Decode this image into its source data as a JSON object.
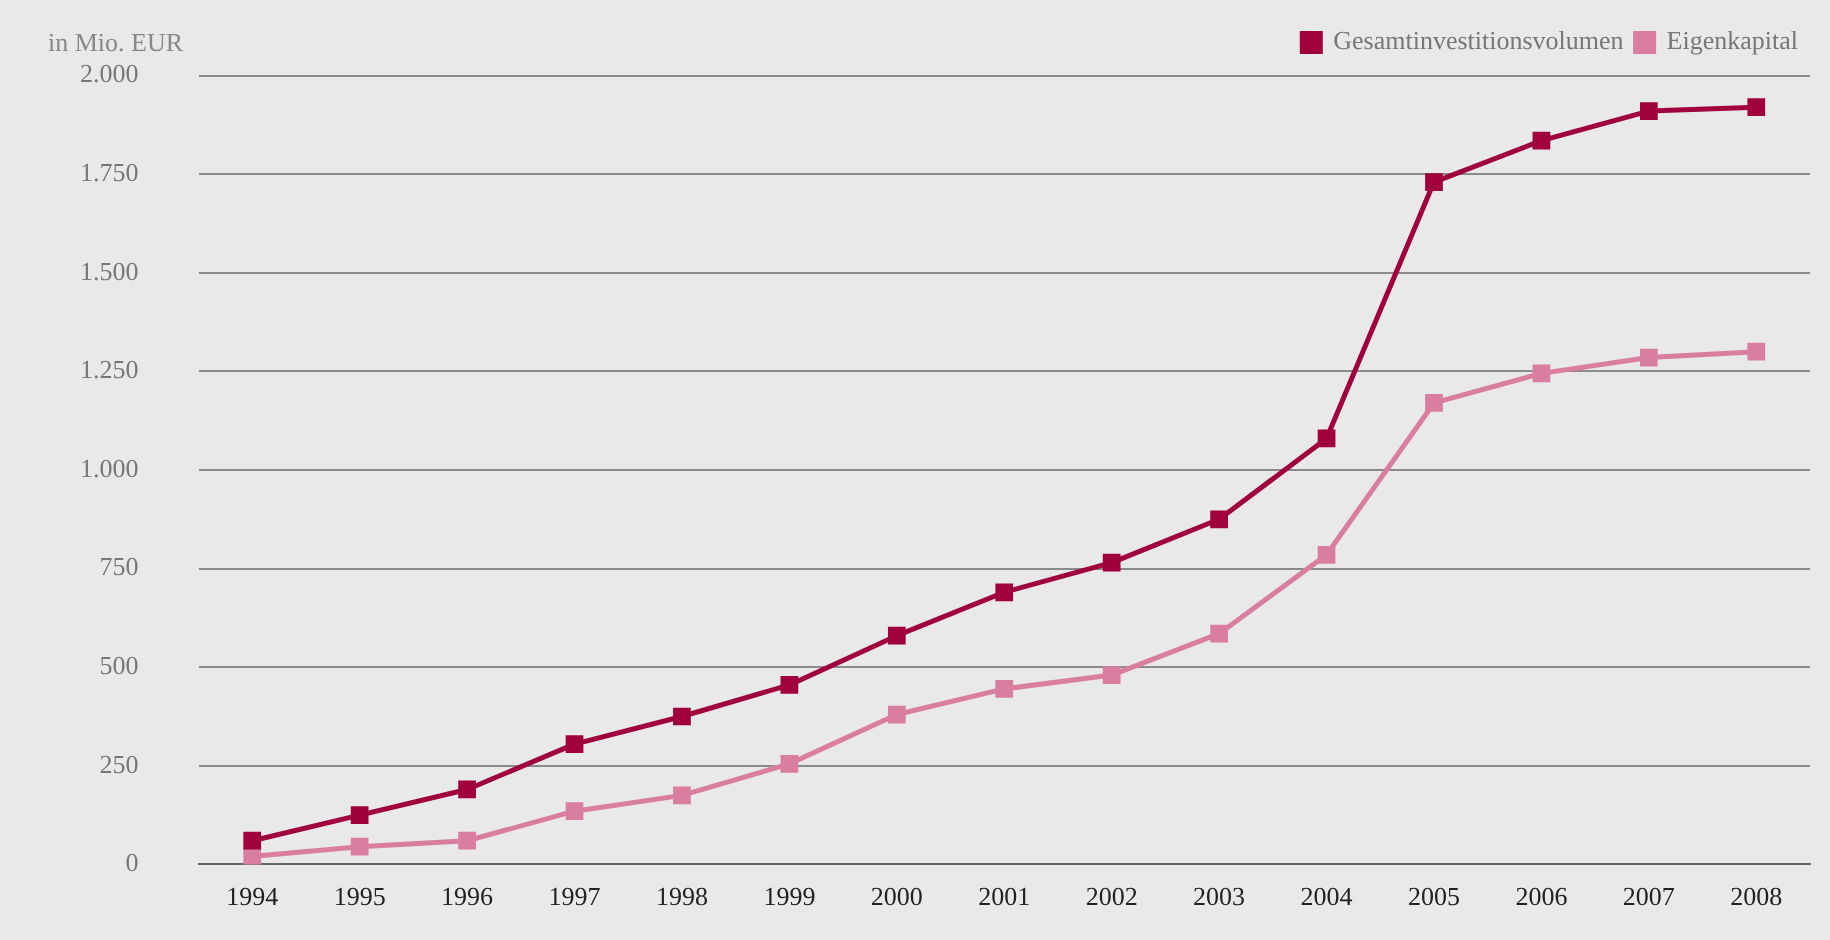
{
  "chart_data": {
    "type": "line",
    "ylabel": "in Mio. EUR",
    "categories": [
      "1994",
      "1995",
      "1996",
      "1997",
      "1998",
      "1999",
      "2000",
      "2001",
      "2002",
      "2003",
      "2004",
      "2005",
      "2006",
      "2007",
      "2008"
    ],
    "series": [
      {
        "name": "Gesamtinvestitionsvolumen",
        "color": "#a0003c",
        "values": [
          60,
          125,
          190,
          305,
          375,
          455,
          580,
          690,
          765,
          875,
          1080,
          1730,
          1835,
          1910,
          1920
        ]
      },
      {
        "name": "Eigenkapital",
        "color": "#d97ea0",
        "values": [
          20,
          45,
          60,
          135,
          175,
          255,
          380,
          445,
          480,
          585,
          785,
          1170,
          1245,
          1285,
          1300
        ]
      }
    ],
    "ylim": [
      0,
      2000
    ],
    "yticks": [
      {
        "value": 0,
        "label": "0"
      },
      {
        "value": 250,
        "label": "250"
      },
      {
        "value": 500,
        "label": "500"
      },
      {
        "value": 750,
        "label": "750"
      },
      {
        "value": 1000,
        "label": "1.000"
      },
      {
        "value": 1250,
        "label": "1.250"
      },
      {
        "value": 1500,
        "label": "1.500"
      },
      {
        "value": 1750,
        "label": "1.750"
      },
      {
        "value": 2000,
        "label": "2.000"
      }
    ],
    "grid": "y",
    "legend": "top right",
    "marker": "square",
    "line_style": "solid"
  }
}
